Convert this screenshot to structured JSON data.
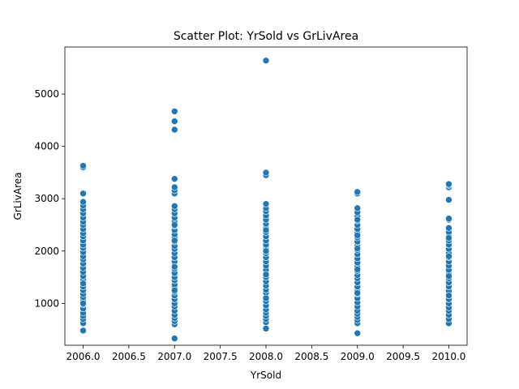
{
  "chart_data": {
    "type": "scatter",
    "title": "Scatter Plot: YrSold vs GrLivArea",
    "xlabel": "YrSold",
    "ylabel": "GrLivArea",
    "xlim": [
      2005.8,
      2010.2
    ],
    "ylim": [
      200,
      5900
    ],
    "xticks": [
      2006.0,
      2006.5,
      2007.0,
      2007.5,
      2008.0,
      2008.5,
      2009.0,
      2009.5,
      2010.0
    ],
    "xtick_labels": [
      "2006.0",
      "2006.5",
      "2007.0",
      "2007.5",
      "2008.0",
      "2008.5",
      "2009.0",
      "2009.5",
      "2010.0"
    ],
    "yticks": [
      1000,
      2000,
      3000,
      4000,
      5000
    ],
    "ytick_labels": [
      "1000",
      "2000",
      "3000",
      "4000",
      "5000"
    ],
    "grid": false,
    "marker_color": "#1f77b4",
    "series": [
      {
        "x": [
          2006,
          2006,
          2006,
          2006,
          2006,
          2006,
          2006,
          2006,
          2006,
          2006,
          2006,
          2006,
          2006,
          2006,
          2006,
          2006,
          2006,
          2006,
          2006,
          2006,
          2006,
          2006,
          2006,
          2006,
          2006,
          2006,
          2006,
          2006,
          2006,
          2006,
          2006,
          2006,
          2006,
          2006,
          2006,
          2006,
          2006,
          2006,
          2006,
          2007,
          2007,
          2007,
          2007,
          2007,
          2007,
          2007,
          2007,
          2007,
          2007,
          2007,
          2007,
          2007,
          2007,
          2007,
          2007,
          2007,
          2007,
          2007,
          2007,
          2007,
          2007,
          2007,
          2007,
          2007,
          2007,
          2007,
          2007,
          2007,
          2007,
          2007,
          2007,
          2007,
          2007,
          2007,
          2007,
          2007,
          2007,
          2007,
          2007,
          2007,
          2007,
          2007,
          2007,
          2008,
          2008,
          2008,
          2008,
          2008,
          2008,
          2008,
          2008,
          2008,
          2008,
          2008,
          2008,
          2008,
          2008,
          2008,
          2008,
          2008,
          2008,
          2008,
          2008,
          2008,
          2008,
          2008,
          2008,
          2008,
          2008,
          2008,
          2008,
          2008,
          2008,
          2008,
          2008,
          2008,
          2008,
          2008,
          2008,
          2008,
          2008,
          2008,
          2009,
          2009,
          2009,
          2009,
          2009,
          2009,
          2009,
          2009,
          2009,
          2009,
          2009,
          2009,
          2009,
          2009,
          2009,
          2009,
          2009,
          2009,
          2009,
          2009,
          2009,
          2009,
          2009,
          2009,
          2009,
          2009,
          2009,
          2009,
          2009,
          2009,
          2009,
          2009,
          2009,
          2009,
          2009,
          2009,
          2009,
          2009,
          2010,
          2010,
          2010,
          2010,
          2010,
          2010,
          2010,
          2010,
          2010,
          2010,
          2010,
          2010,
          2010,
          2010,
          2010,
          2010,
          2010,
          2010,
          2010,
          2010,
          2010,
          2010,
          2010,
          2010,
          2010,
          2010,
          2010,
          2010,
          2010,
          2010,
          2010,
          2010,
          2010,
          2010
        ],
        "y": [
          480,
          620,
          700,
          760,
          820,
          900,
          980,
          1050,
          1120,
          1180,
          1250,
          1320,
          1400,
          1460,
          1520,
          1600,
          1680,
          1760,
          1840,
          1900,
          1980,
          2060,
          2120,
          2200,
          2280,
          2340,
          2420,
          2500,
          2560,
          2640,
          2720,
          2800,
          2870,
          2940,
          3100,
          3600,
          3630,
          1000,
          1380,
          330,
          600,
          660,
          720,
          780,
          860,
          940,
          1000,
          1080,
          1150,
          1220,
          1300,
          1360,
          1440,
          1500,
          1580,
          1660,
          1720,
          1800,
          1880,
          1960,
          2040,
          2100,
          2180,
          2260,
          2320,
          2400,
          2480,
          2560,
          2640,
          2720,
          2800,
          2860,
          3100,
          3160,
          3220,
          3380,
          4320,
          4480,
          4670,
          1250,
          1700,
          2200,
          2500,
          520,
          640,
          700,
          760,
          820,
          880,
          960,
          1040,
          1120,
          1200,
          1260,
          1340,
          1420,
          1500,
          1560,
          1640,
          1720,
          1800,
          1880,
          1960,
          2040,
          2120,
          2200,
          2280,
          2360,
          2440,
          2520,
          2600,
          2680,
          2760,
          2820,
          2900,
          3450,
          3500,
          5640,
          1100,
          1550,
          2000,
          2400,
          430,
          620,
          680,
          740,
          800,
          860,
          940,
          1020,
          1100,
          1180,
          1240,
          1320,
          1400,
          1480,
          1540,
          1620,
          1700,
          1780,
          1860,
          1940,
          2020,
          2100,
          2180,
          2260,
          2340,
          2420,
          2500,
          2580,
          2660,
          2740,
          2820,
          3100,
          3130,
          1200,
          1650,
          2050,
          2300,
          2600,
          620,
          700,
          780,
          860,
          920,
          1000,
          1080,
          1160,
          1240,
          1320,
          1400,
          1480,
          1560,
          1640,
          1720,
          1800,
          1880,
          1960,
          2040,
          2120,
          2200,
          2280,
          2360,
          2440,
          2600,
          2980,
          3220,
          3260,
          1150,
          1520,
          1900,
          2250,
          2620,
          3280
        ]
      }
    ]
  }
}
